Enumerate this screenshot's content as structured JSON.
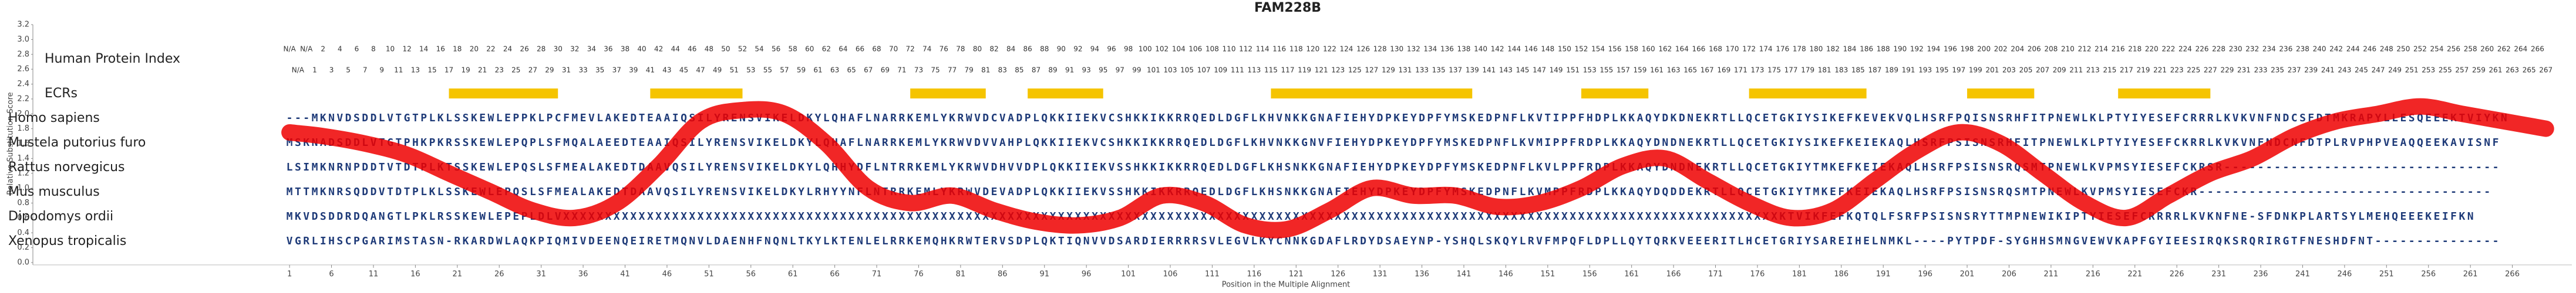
{
  "chart_data": {
    "type": "alignment",
    "title": "FAM228B",
    "ylabel": "Relative Substitution Score",
    "xlabel": "Position in the Multiple Alignment",
    "xlim": [
      -29.6,
      273.1
    ],
    "ylim": [
      0,
      3.2
    ],
    "yticks": [
      {
        "value": 0,
        "label": "0.0"
      },
      {
        "value": 0.2,
        "label": "0.2"
      },
      {
        "value": 0.4,
        "label": "0.4"
      },
      {
        "value": 0.6,
        "label": "0.6"
      },
      {
        "value": 0.8,
        "label": "0.8"
      },
      {
        "value": 1,
        "label": "1.0"
      },
      {
        "value": 1.2,
        "label": "1.2"
      },
      {
        "value": 1.4,
        "label": "1.4"
      },
      {
        "value": 1.6,
        "label": "1.6"
      },
      {
        "value": 1.8,
        "label": "1.8"
      },
      {
        "value": 2,
        "label": "2.0"
      },
      {
        "value": 2.2,
        "label": "2.2"
      },
      {
        "value": 2.4,
        "label": "2.4"
      },
      {
        "value": 2.6,
        "label": "2.6"
      },
      {
        "value": 2.8,
        "label": "2.8"
      },
      {
        "value": 3,
        "label": "3.0"
      },
      {
        "value": 3.2,
        "label": "3.2"
      }
    ],
    "xticks": [
      1,
      6,
      11,
      16,
      21,
      26,
      31,
      36,
      41,
      46,
      51,
      56,
      61,
      66,
      71,
      76,
      81,
      86,
      91,
      96,
      101,
      106,
      111,
      116,
      121,
      126,
      131,
      136,
      141,
      146,
      151,
      156,
      161,
      166,
      171,
      176,
      181,
      186,
      191,
      196,
      201,
      206,
      211,
      216,
      221,
      226,
      231,
      236,
      241,
      246,
      251,
      256,
      261,
      266
    ],
    "index_label": "Human Protein Index",
    "human_index": [
      "N/A",
      "N/A",
      "N/A",
      1,
      2,
      3,
      4,
      5,
      6,
      7,
      8,
      9,
      10,
      11,
      12,
      13,
      14,
      15,
      16,
      17,
      18,
      19,
      20,
      21,
      22,
      23,
      24,
      25,
      26,
      27,
      28,
      29,
      30,
      31,
      32,
      33,
      34,
      35,
      36,
      37,
      38,
      39,
      40,
      41,
      42,
      43,
      44,
      45,
      46,
      47,
      48,
      49,
      50,
      51,
      52,
      53,
      54,
      55,
      56,
      57,
      58,
      59,
      60,
      61,
      62,
      63,
      64,
      65,
      66,
      67,
      68,
      69,
      70,
      71,
      72,
      73,
      74,
      75,
      76,
      77,
      78,
      79,
      80,
      81,
      82,
      83,
      84,
      85,
      86,
      87,
      88,
      89,
      90,
      91,
      92,
      93,
      94,
      95,
      96,
      97,
      98,
      99,
      100,
      101,
      102,
      103,
      104,
      105,
      106,
      107,
      108,
      109,
      110,
      111,
      112,
      113,
      114,
      115,
      116,
      117,
      118,
      119,
      120,
      121,
      122,
      123,
      124,
      125,
      126,
      127,
      128,
      129,
      130,
      131,
      132,
      133,
      134,
      135,
      136,
      137,
      138,
      139,
      140,
      141,
      142,
      143,
      144,
      145,
      146,
      147,
      148,
      149,
      150,
      151,
      152,
      153,
      154,
      155,
      156,
      157,
      158,
      159,
      160,
      161,
      162,
      163,
      164,
      165,
      166,
      167,
      168,
      169,
      170,
      171,
      172,
      173,
      174,
      175,
      176,
      177,
      178,
      179,
      180,
      181,
      182,
      183,
      184,
      185,
      186,
      187,
      188,
      189,
      190,
      191,
      192,
      193,
      194,
      195,
      196,
      197,
      198,
      199,
      200,
      201,
      202,
      203,
      204,
      205,
      206,
      207,
      208,
      209,
      210,
      211,
      212,
      213,
      214,
      215,
      216,
      217,
      218,
      219,
      220,
      221,
      222,
      223,
      224,
      225,
      226,
      227,
      228,
      229,
      230,
      231,
      232,
      233,
      234,
      235,
      236,
      237,
      238,
      239,
      240,
      241,
      242,
      243,
      244,
      245,
      246,
      247,
      248,
      249,
      250,
      251,
      252,
      253,
      254,
      255,
      256,
      257,
      258,
      259,
      260,
      261,
      262,
      263,
      264,
      265,
      266,
      267
    ],
    "ecr_label": "ECRs",
    "ecr_color": "#f5c400",
    "ecrs": [
      [
        20,
        33
      ],
      [
        44,
        55
      ],
      [
        75,
        84
      ],
      [
        89,
        98
      ],
      [
        118,
        142
      ],
      [
        155,
        163
      ],
      [
        175,
        189
      ],
      [
        201,
        209
      ],
      [
        219,
        230
      ]
    ],
    "score": {
      "color": "#ee0000",
      "x": [
        1,
        5,
        10,
        15,
        20,
        25,
        30,
        35,
        40,
        45,
        50,
        55,
        60,
        65,
        70,
        75,
        80,
        85,
        90,
        95,
        100,
        105,
        110,
        115,
        120,
        125,
        130,
        135,
        140,
        145,
        150,
        155,
        160,
        165,
        170,
        175,
        180,
        185,
        190,
        195,
        200,
        205,
        210,
        215,
        220,
        225,
        230,
        235,
        240,
        245,
        250,
        255,
        260,
        265,
        270
      ],
      "values": [
        1.75,
        1.7,
        1.6,
        1.45,
        1.2,
        0.95,
        0.7,
        0.6,
        0.8,
        1.3,
        1.9,
        2.05,
        2.0,
        1.6,
        1.0,
        0.8,
        0.9,
        0.7,
        0.55,
        0.5,
        0.6,
        0.9,
        0.8,
        0.5,
        0.45,
        0.7,
        1.0,
        0.9,
        0.9,
        0.75,
        0.8,
        1.0,
        1.3,
        1.4,
        1.1,
        0.8,
        0.6,
        0.7,
        1.1,
        1.5,
        1.75,
        1.6,
        1.2,
        0.8,
        0.6,
        0.9,
        1.2,
        1.4,
        1.7,
        1.9,
        2.0,
        2.1,
        2.0,
        1.9,
        1.8
      ]
    },
    "sequences": [
      {
        "name": "Homo sapiens",
        "seq": "---MKNVDSDDLVTGTPLKLSSKEWLEPPKLPCFMEVLAKEDTEAAIQSILYRENSVIKELDKYLQHAFLNARRKEMLYKRWVDCVADPLQKKIIEKVCSHKKIKKRRQEDLDGFLKHVNKKGNAFIEHYDPKEYDPFYMSKEDPNFLKVTIPPFHDPLKKAQYDKDNEKRTLLQCETGKIYSIKEFKEVEKVQLHSRFPQISNSRHFITPNEWLKLPTYIYESEFCRRRLKVKVNFNDCSFDTMKRAPYLLESQEEEKTVIYKN"
      },
      {
        "name": "Mustela putorius furo",
        "seq": "MSKNADSDDLVTGTPHKPKRSSKEWLEPQPLSFMQALAEEDTEAAIQSILYRENSVIKELDKYLQHAFLNARRKEMLYKRWVDVVAHPLQKKIIEKVCSHKKIKKRRQEDLDGFLKHVNKKGNVFIEHYDPKEYDPFYMSKEDPNFLKVMIPPFRDPLKKAQYDNDNEKRTLLQCETGKIYSIKEFKEIEKAQLHSRFPSISNSRHFITPNEWLKLPTYIYESEFCKRRLKVKVNFNDCNFDTPLRVPHPVEAQQEEKAVISNF"
      },
      {
        "name": "Rattus norvegicus",
        "seq": "LSIMKNRNPDDTVTDTPLKTSSKEWLEPQSLSFMEALAKEDTDAAVQSILYRENSVIKELDKYLQHHYDFLNTRRKEMLYKRWVDHVVDPLQKKIIEKVSSHKKIKKRRQEDLDGFLKHSNKKGNAFIEHYDPKEYDPFYMSKEDPNFLKVLPPFRDPLKKAQYDNDNEKRTLLQCETGKIYTMKEFKEIEKAQLHSRFPSISNSRQSMTPNEWLKVPMSYIESEFCKRSR---------------------------------"
      },
      {
        "name": "Mus musculus",
        "seq": "MTTMKNRSQDDVTDTPLKLSSKEWLEPQSLSFMEALAKEDTDAAVQSILYRENSVIKELDKYLRHYYNFLNTRRKEMLYKRWVDEVADPLQKKIIEKVSSHKKIKKRRQEDLDGFLKHSNKKGNAFIEHYDPKEYDPFYMSKEDPNFLKVMPPFRDPLKKAQYDQDDEKRTLLQCETGKIYTMKEFKEIEKAQLHSRFPSISNSRQSMTPNEWLKVPMSYIESEFCKR-----------------------------------"
      },
      {
        "name": "Dipodomys ordii",
        "seq": "MKVDSDDRDQANGTLPKLRSSKEWLEPEPLDLVXXXXXXXXXXXXXXXXXXXXXXXXXXXXXXXXXXXXXXXXXXXXXXXXXXXXXXXXXXXXXXXXXXXXXXXXXXXXXXXXXXXXXXXXXXXXXXXXXXXXXXXXXXXXXXXXXXXXXXXXXXXXXXXXXXXXXXXXXXXXXXXXXKTVIKFEFKQTQLFSRFPSISNSRYTTMPNEWIKIPTYIESEFCRRRRLKVKNFNE-SFDNKPLARTSYLMEHQEEEKEIFKN"
      },
      {
        "name": "Xenopus tropicalis",
        "seq": "VGRLIHSCPGARIMSTASN-RKARDWLAQKPIQMIVDEENQEIRETMQNVLDAENHFNQNLTKYLKTENLELRRKEMQHKRWTERVSDPLQKTIQNVVDSARDIERRRRSVLEGVLKYCNNKGDAFLRDYDSAEYNP-YSHQLSKQYLRVFMPQFLDPLLQYTQRKVEEERITLHCETGRIYSAREIHELNMKL----PYTPDF-SYGHHSMNGVEWVKAPFGYIEESIRQKSRQRIRGTFNESHDFNT---------------"
      }
    ]
  }
}
